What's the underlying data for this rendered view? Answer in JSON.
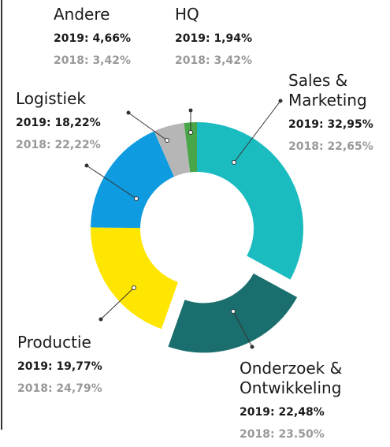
{
  "chart_data": {
    "type": "donut",
    "categories": [
      "Sales & Marketing",
      "Onderzoek & Ontwikkeling",
      "Productie",
      "Logistiek",
      "Andere",
      "HQ"
    ],
    "colors": [
      "#1bbcc0",
      "#1a6f6e",
      "#ffe600",
      "#0f9be0",
      "#b6b6b6",
      "#48a648"
    ],
    "series": [
      {
        "name": "2019",
        "values": [
          32.95,
          22.48,
          19.77,
          18.22,
          4.66,
          1.94
        ],
        "value_labels": [
          "2019: 32,95%",
          "2019: 22,48%",
          "2019: 19,77%",
          "2019: 18,22%",
          "2019: 4,66%",
          "2019: 1,94%"
        ]
      },
      {
        "name": "2018",
        "values": [
          22.65,
          23.5,
          24.79,
          22.22,
          3.42,
          3.42
        ],
        "value_labels": [
          "2018: 22,65%",
          "2018: 23.50%",
          "2018: 24,79%",
          "2018: 22,22%",
          "2018: 3,42%",
          "2018: 3,42%"
        ]
      }
    ]
  }
}
